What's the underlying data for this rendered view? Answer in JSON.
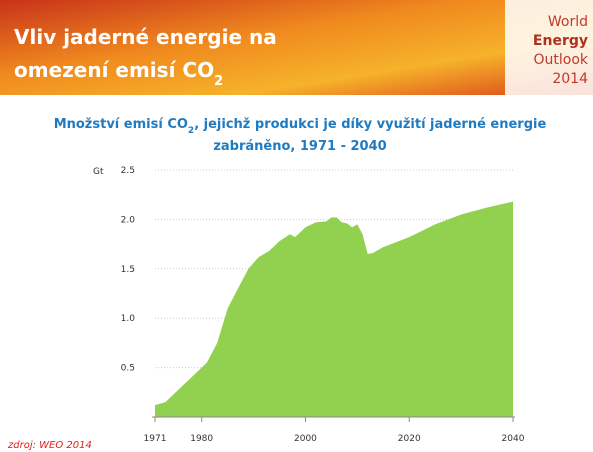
{
  "header": {
    "title": [
      "Vliv jaderné energie na",
      "omezení emisí CO",
      "2"
    ]
  },
  "logo": [
    "World",
    "Energy",
    "Outlook",
    "2014"
  ],
  "chart_data": {
    "type": "area",
    "title": [
      "Množství emisí CO",
      "2",
      ", jejichž produkci je díky využití jaderné energie",
      "zabráněno, 1971 - 2040"
    ],
    "y_label": "Gt",
    "x": [
      1971,
      1973,
      1975,
      1977,
      1979,
      1981,
      1983,
      1985,
      1987,
      1989,
      1991,
      1993,
      1995,
      1997,
      1998,
      2000,
      2002,
      2004,
      2005,
      2006,
      2007,
      2008,
      2009,
      2010,
      2011,
      2012,
      2013,
      2015,
      2017,
      2020,
      2025,
      2030,
      2035,
      2040
    ],
    "values": [
      0.12,
      0.15,
      0.25,
      0.35,
      0.45,
      0.55,
      0.75,
      1.1,
      1.3,
      1.5,
      1.62,
      1.68,
      1.78,
      1.85,
      1.82,
      1.92,
      1.97,
      1.98,
      2.02,
      2.02,
      1.97,
      1.96,
      1.92,
      1.95,
      1.85,
      1.65,
      1.66,
      1.72,
      1.76,
      1.82,
      1.95,
      2.05,
      2.12,
      2.18
    ],
    "color": "#92d050",
    "xlim": [
      1971,
      2040
    ],
    "xticks": [
      1971,
      1980,
      2000,
      2020,
      2040
    ],
    "ylim": [
      0,
      2.5
    ],
    "yticks": [
      0.5,
      {
        "value": 1,
        "label": "1.0"
      },
      1.5,
      {
        "value": 2,
        "label": "2.0"
      },
      2.5
    ],
    "grid": true
  },
  "source": "zdroj: WEO 2014"
}
